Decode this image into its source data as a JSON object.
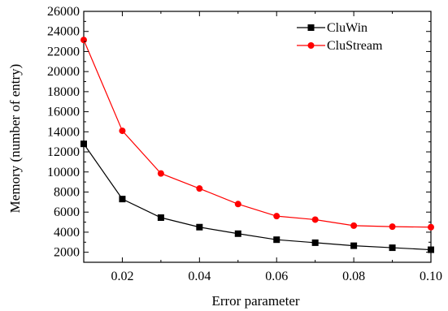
{
  "chart_data": {
    "type": "line",
    "title": "",
    "xlabel": "Error parameter",
    "ylabel": "Memory (number of entry)",
    "xlim": [
      0.01,
      0.1
    ],
    "ylim": [
      1000,
      26000
    ],
    "x_ticks": [
      "0.02",
      "0.04",
      "0.06",
      "0.08",
      "0.10"
    ],
    "y_ticks": [
      "2000",
      "4000",
      "6000",
      "8000",
      "10000",
      "12000",
      "14000",
      "16000",
      "18000",
      "20000",
      "22000",
      "24000",
      "26000"
    ],
    "legend_placement": "top-right",
    "grid": false,
    "x": [
      0.01,
      0.02,
      0.03,
      0.04,
      0.05,
      0.06,
      0.07,
      0.08,
      0.09,
      0.1
    ],
    "series": [
      {
        "name": "CluWin",
        "color": "#000000",
        "marker": "square",
        "values": [
          12800,
          7300,
          5450,
          4500,
          3850,
          3250,
          2950,
          2650,
          2450,
          2250
        ]
      },
      {
        "name": "CluStream",
        "color": "#ff0000",
        "marker": "circle",
        "values": [
          23150,
          14100,
          9850,
          8350,
          6800,
          5600,
          5250,
          4650,
          4550,
          4500
        ]
      }
    ]
  }
}
